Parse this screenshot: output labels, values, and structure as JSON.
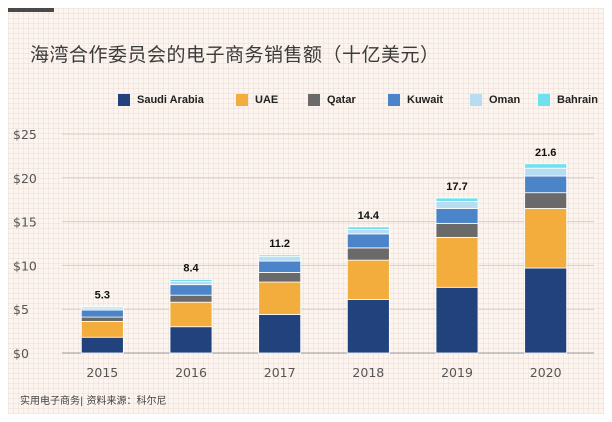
{
  "title": "海湾合作委员会的电子商务销售额（十亿美元）",
  "source": "实用电子商务| 资料来源：科尔尼",
  "colors": {
    "Saudi Arabia": "#22427d",
    "UAE": "#f3ad3c",
    "Qatar": "#6a6a6a",
    "Kuwait": "#4c84c9",
    "Oman": "#b8ddf0",
    "Bahrain": "#6ee0ef"
  },
  "chart_data": {
    "type": "bar",
    "stacked": true,
    "title": "海湾合作委员会的电子商务销售额（十亿美元）",
    "xlabel": "",
    "ylabel": "",
    "categories": [
      "2015",
      "2016",
      "2017",
      "2018",
      "2019",
      "2020"
    ],
    "totals": [
      "5.3",
      "8.4",
      "11.2",
      "14.4",
      "17.7",
      "21.6"
    ],
    "ylim": [
      0,
      25
    ],
    "yticks": [
      0,
      5,
      10,
      15,
      20,
      25
    ],
    "ytick_labels": [
      "$0",
      "$5",
      "$10",
      "$15",
      "$20",
      "$25"
    ],
    "legend_position": "top",
    "grid": true,
    "series": [
      {
        "name": "Saudi Arabia",
        "values": [
          1.8,
          3.0,
          4.4,
          6.1,
          7.5,
          9.7
        ]
      },
      {
        "name": "UAE",
        "values": [
          1.8,
          2.8,
          3.7,
          4.5,
          5.7,
          6.8
        ]
      },
      {
        "name": "Qatar",
        "values": [
          0.5,
          0.8,
          1.1,
          1.4,
          1.6,
          1.8
        ]
      },
      {
        "name": "Kuwait",
        "values": [
          0.8,
          1.2,
          1.3,
          1.6,
          1.7,
          1.9
        ]
      },
      {
        "name": "Oman",
        "values": [
          0.25,
          0.35,
          0.5,
          0.5,
          0.8,
          0.9
        ]
      },
      {
        "name": "Bahrain",
        "values": [
          0.15,
          0.25,
          0.2,
          0.3,
          0.4,
          0.5
        ]
      }
    ]
  }
}
